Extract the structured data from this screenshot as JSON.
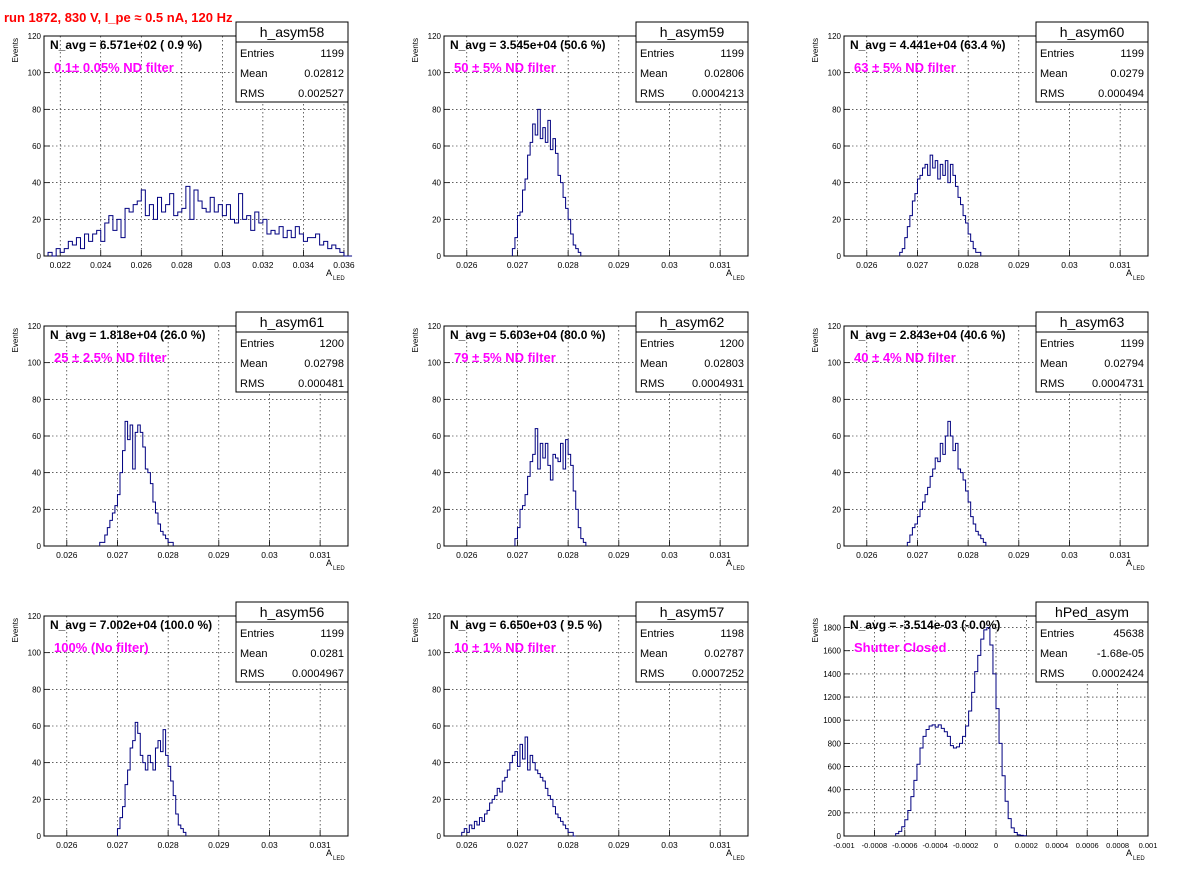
{
  "page": {
    "title": "run 1872,   830 V, I_pe ≈ 0.5 nA, 120 Hz"
  },
  "labels": {
    "y_axis": "Events",
    "x_axis_main": "A",
    "x_axis_sub": "LED",
    "stat_entries": "Entries",
    "stat_mean": "Mean",
    "stat_rms": "RMS"
  },
  "colors": {
    "title": "#ff0000",
    "annotation": "#ff00ff",
    "histogram": "#000080",
    "grid": "#000000"
  },
  "chart_data": [
    {
      "type": "bar",
      "name": "h_asym58",
      "navg_text": "N_avg = 6.571e+02 ( 0.9 %)",
      "annotation": "0.1± 0.05% ND filter",
      "entries": "1199",
      "mean": "0.02812",
      "rms": "0.002527",
      "xlim": [
        0.0212,
        0.0362
      ],
      "ylim": [
        0,
        120
      ],
      "xticks": [
        0.022,
        0.024,
        0.026,
        0.028,
        0.03,
        0.032,
        0.034,
        0.036
      ],
      "xtick_labels": [
        "0.022",
        "0.024",
        "0.026",
        "0.028",
        "0.03",
        "0.032",
        "0.034",
        "0.036"
      ],
      "yticks": [
        0,
        20,
        40,
        60,
        80,
        100,
        120
      ],
      "ytick_labels": [
        "0",
        "20",
        "40",
        "60",
        "80",
        "100",
        "120"
      ],
      "bin_start": 0.0214,
      "bin_width": 0.0002,
      "counts": [
        2,
        0,
        4,
        2,
        4,
        8,
        6,
        10,
        4,
        12,
        8,
        12,
        14,
        8,
        18,
        22,
        14,
        20,
        10,
        26,
        24,
        28,
        30,
        36,
        22,
        28,
        20,
        32,
        24,
        28,
        34,
        22,
        24,
        26,
        38,
        20,
        36,
        30,
        26,
        24,
        32,
        24,
        28,
        22,
        28,
        20,
        18,
        34,
        20,
        22,
        14,
        24,
        18,
        20,
        12,
        14,
        12,
        16,
        10,
        14,
        10,
        16,
        12,
        8,
        10,
        10,
        12,
        6,
        8,
        4,
        6,
        4,
        2,
        0,
        0
      ]
    },
    {
      "type": "bar",
      "name": "h_asym59",
      "navg_text": "N_avg = 3.545e+04 (50.6 %)",
      "annotation": "50 ± 5% ND filter",
      "entries": "1199",
      "mean": "0.02806",
      "rms": "0.0004213",
      "xlim": [
        0.02555,
        0.03155
      ],
      "ylim": [
        0,
        120
      ],
      "xticks": [
        0.026,
        0.027,
        0.028,
        0.029,
        0.03,
        0.031
      ],
      "xtick_labels": [
        "0.026",
        "0.027",
        "0.028",
        "0.029",
        "0.03",
        "0.031"
      ],
      "yticks": [
        0,
        20,
        40,
        60,
        80,
        100,
        120
      ],
      "ytick_labels": [
        "0",
        "20",
        "40",
        "60",
        "80",
        "100",
        "120"
      ],
      "bin_start": 0.0269,
      "bin_width": 5e-05,
      "counts": [
        4,
        10,
        22,
        24,
        36,
        42,
        55,
        62,
        72,
        66,
        80,
        64,
        70,
        62,
        74,
        58,
        64,
        56,
        44,
        40,
        32,
        26,
        20,
        12,
        6,
        4,
        2
      ]
    },
    {
      "type": "bar",
      "name": "h_asym60",
      "navg_text": "N_avg = 4.441e+04 (63.4 %)",
      "annotation": "63 ± 5% ND filter",
      "entries": "1199",
      "mean": "0.0279",
      "rms": "0.000494",
      "xlim": [
        0.02555,
        0.03155
      ],
      "ylim": [
        0,
        120
      ],
      "xticks": [
        0.026,
        0.027,
        0.028,
        0.029,
        0.03,
        0.031
      ],
      "xtick_labels": [
        "0.026",
        "0.027",
        "0.028",
        "0.029",
        "0.03",
        "0.031"
      ],
      "yticks": [
        0,
        20,
        40,
        60,
        80,
        100,
        120
      ],
      "ytick_labels": [
        "0",
        "20",
        "40",
        "60",
        "80",
        "100",
        "120"
      ],
      "bin_start": 0.02665,
      "bin_width": 5e-05,
      "counts": [
        2,
        4,
        10,
        16,
        22,
        30,
        34,
        42,
        44,
        48,
        50,
        44,
        55,
        48,
        52,
        42,
        50,
        44,
        52,
        40,
        50,
        44,
        38,
        32,
        28,
        22,
        18,
        12,
        8,
        4,
        2,
        2
      ]
    },
    {
      "type": "bar",
      "name": "h_asym61",
      "navg_text": "N_avg = 1.818e+04 (26.0 %)",
      "annotation": "25 ± 2.5% ND filter",
      "entries": "1200",
      "mean": "0.02798",
      "rms": "0.000481",
      "xlim": [
        0.02555,
        0.03155
      ],
      "ylim": [
        0,
        120
      ],
      "xticks": [
        0.026,
        0.027,
        0.028,
        0.029,
        0.03,
        0.031
      ],
      "xtick_labels": [
        "0.026",
        "0.027",
        "0.028",
        "0.029",
        "0.03",
        "0.031"
      ],
      "yticks": [
        0,
        20,
        40,
        60,
        80,
        100,
        120
      ],
      "ytick_labels": [
        "0",
        "20",
        "40",
        "60",
        "80",
        "100",
        "120"
      ],
      "bin_start": 0.02665,
      "bin_width": 5e-05,
      "counts": [
        2,
        2,
        6,
        10,
        14,
        18,
        22,
        28,
        40,
        52,
        68,
        58,
        66,
        42,
        62,
        66,
        62,
        54,
        42,
        40,
        34,
        24,
        18,
        12,
        8,
        6,
        4,
        2,
        2
      ]
    },
    {
      "type": "bar",
      "name": "h_asym62",
      "navg_text": "N_avg = 5.603e+04 (80.0 %)",
      "annotation": "79 ± 5% ND filter",
      "entries": "1200",
      "mean": "0.02803",
      "rms": "0.0004931",
      "xlim": [
        0.02555,
        0.03155
      ],
      "ylim": [
        0,
        120
      ],
      "xticks": [
        0.026,
        0.027,
        0.028,
        0.029,
        0.03,
        0.031
      ],
      "xtick_labels": [
        "0.026",
        "0.027",
        "0.028",
        "0.029",
        "0.03",
        "0.031"
      ],
      "yticks": [
        0,
        20,
        40,
        60,
        80,
        100,
        120
      ],
      "ytick_labels": [
        "0",
        "20",
        "40",
        "60",
        "80",
        "100",
        "120"
      ],
      "bin_start": 0.02695,
      "bin_width": 5e-05,
      "counts": [
        4,
        10,
        20,
        22,
        28,
        38,
        46,
        50,
        64,
        42,
        56,
        48,
        56,
        44,
        36,
        50,
        48,
        46,
        56,
        42,
        58,
        50,
        44,
        30,
        20,
        10,
        4,
        2
      ]
    },
    {
      "type": "bar",
      "name": "h_asym63",
      "navg_text": "N_avg = 2.843e+04 (40.6 %)",
      "annotation": "40 ± 4% ND filter",
      "entries": "1199",
      "mean": "0.02794",
      "rms": "0.0004731",
      "xlim": [
        0.02555,
        0.03155
      ],
      "ylim": [
        0,
        120
      ],
      "xticks": [
        0.026,
        0.027,
        0.028,
        0.029,
        0.03,
        0.031
      ],
      "xtick_labels": [
        "0.026",
        "0.027",
        "0.028",
        "0.029",
        "0.03",
        "0.031"
      ],
      "yticks": [
        0,
        20,
        40,
        60,
        80,
        100,
        120
      ],
      "ytick_labels": [
        "0",
        "20",
        "40",
        "60",
        "80",
        "100",
        "120"
      ],
      "bin_start": 0.0268,
      "bin_width": 5e-05,
      "counts": [
        2,
        6,
        10,
        12,
        16,
        20,
        24,
        28,
        32,
        38,
        42,
        48,
        46,
        56,
        50,
        60,
        68,
        60,
        52,
        56,
        42,
        40,
        36,
        30,
        24,
        16,
        12,
        8,
        6,
        4,
        2
      ]
    },
    {
      "type": "bar",
      "name": "h_asym56",
      "navg_text": "N_avg = 7.002e+04 (100.0 %)",
      "annotation": "100% (No filter)",
      "entries": "1199",
      "mean": "0.0281",
      "rms": "0.0004967",
      "xlim": [
        0.02555,
        0.03155
      ],
      "ylim": [
        0,
        120
      ],
      "xticks": [
        0.026,
        0.027,
        0.028,
        0.029,
        0.03,
        0.031
      ],
      "xtick_labels": [
        "0.026",
        "0.027",
        "0.028",
        "0.029",
        "0.03",
        "0.031"
      ],
      "yticks": [
        0,
        20,
        40,
        60,
        80,
        100,
        120
      ],
      "ytick_labels": [
        "0",
        "20",
        "40",
        "60",
        "80",
        "100",
        "120"
      ],
      "bin_start": 0.027,
      "bin_width": 5e-05,
      "counts": [
        4,
        10,
        16,
        28,
        36,
        48,
        52,
        62,
        56,
        44,
        40,
        36,
        44,
        40,
        36,
        48,
        52,
        46,
        58,
        44,
        38,
        30,
        22,
        12,
        6,
        4,
        2
      ]
    },
    {
      "type": "bar",
      "name": "h_asym57",
      "navg_text": "N_avg = 6.650e+03 ( 9.5 %)",
      "annotation": "10 ± 1% ND filter",
      "entries": "1198",
      "mean": "0.02787",
      "rms": "0.0007252",
      "xlim": [
        0.02555,
        0.03155
      ],
      "ylim": [
        0,
        120
      ],
      "xticks": [
        0.026,
        0.027,
        0.028,
        0.029,
        0.03,
        0.031
      ],
      "xtick_labels": [
        "0.026",
        "0.027",
        "0.028",
        "0.029",
        "0.03",
        "0.031"
      ],
      "yticks": [
        0,
        20,
        40,
        60,
        80,
        100,
        120
      ],
      "ytick_labels": [
        "0",
        "20",
        "40",
        "60",
        "80",
        "100",
        "120"
      ],
      "bin_start": 0.0259,
      "bin_width": 5e-05,
      "counts": [
        2,
        4,
        2,
        6,
        4,
        8,
        6,
        10,
        8,
        12,
        14,
        18,
        20,
        22,
        26,
        24,
        30,
        32,
        36,
        40,
        44,
        46,
        38,
        50,
        42,
        54,
        36,
        44,
        40,
        36,
        34,
        32,
        30,
        26,
        22,
        20,
        16,
        12,
        10,
        8,
        6,
        4,
        2,
        2,
        0
      ]
    },
    {
      "type": "bar",
      "name": "hPed_asym",
      "navg_text": "N_avg = -3.514e-03 (-0.0%)",
      "annotation": "Shutter Closed",
      "entries": "45638",
      "mean": "-1.68e-05",
      "rms": "0.0002424",
      "xlim": [
        -0.001,
        0.001
      ],
      "ylim": [
        0,
        1900
      ],
      "xticks": [
        -0.001,
        -0.0008,
        -0.0006,
        -0.0004,
        -0.0002,
        0,
        0.0002,
        0.0004,
        0.0006,
        0.0008,
        0.001
      ],
      "xtick_labels": [
        "-0.001",
        "-0.0008",
        "-0.0006",
        "-0.0004",
        "-0.0002",
        "0",
        "0.0002",
        "0.0004",
        "0.0006",
        "0.0008",
        "0.001"
      ],
      "yticks": [
        0,
        200,
        400,
        600,
        800,
        1000,
        1200,
        1400,
        1600,
        1800
      ],
      "ytick_labels": [
        "0",
        "200",
        "400",
        "600",
        "800",
        "1000",
        "1200",
        "1400",
        "1600",
        "1800"
      ],
      "bin_start": -0.00066,
      "bin_width": 2e-05,
      "counts": [
        20,
        40,
        80,
        140,
        220,
        340,
        480,
        620,
        760,
        860,
        920,
        950,
        960,
        940,
        960,
        930,
        900,
        860,
        780,
        760,
        770,
        800,
        860,
        950,
        1080,
        1240,
        1420,
        1560,
        1700,
        1780,
        1800,
        1650,
        1400,
        1100,
        800,
        520,
        300,
        150,
        70,
        30,
        10,
        5,
        2
      ]
    }
  ]
}
